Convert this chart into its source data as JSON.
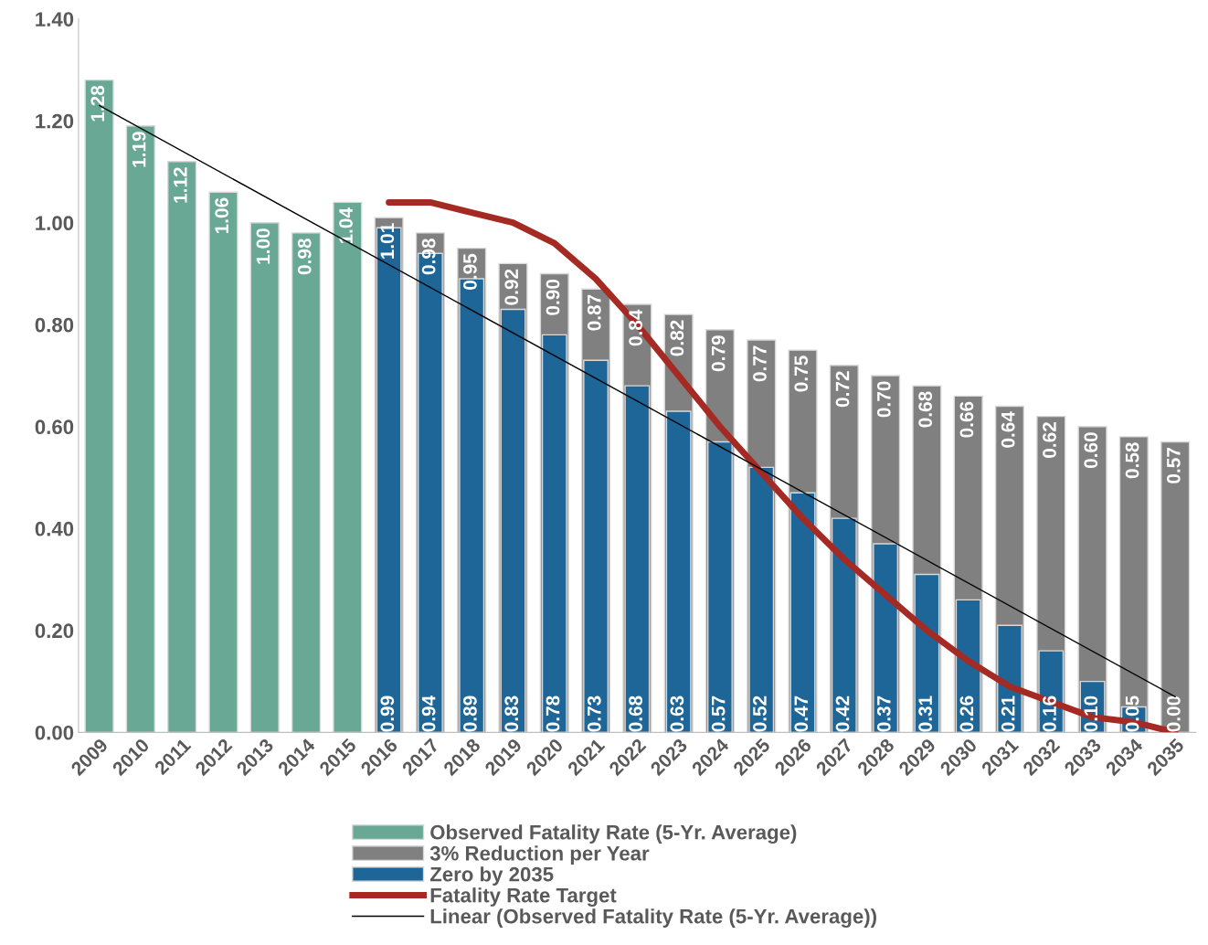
{
  "chart_data": {
    "type": "bar",
    "categories": [
      "2009",
      "2010",
      "2011",
      "2012",
      "2013",
      "2014",
      "2015",
      "2016",
      "2017",
      "2018",
      "2019",
      "2020",
      "2021",
      "2022",
      "2023",
      "2024",
      "2025",
      "2026",
      "2027",
      "2028",
      "2029",
      "2030",
      "2031",
      "2032",
      "2033",
      "2034",
      "2035"
    ],
    "series": [
      {
        "name": "Observed Fatality Rate (5-Yr. Average)",
        "color": "#68a894",
        "values": [
          1.28,
          1.19,
          1.12,
          1.06,
          1.0,
          0.98,
          1.04,
          null,
          null,
          null,
          null,
          null,
          null,
          null,
          null,
          null,
          null,
          null,
          null,
          null,
          null,
          null,
          null,
          null,
          null,
          null,
          null
        ],
        "value_labels": [
          "1.28",
          "1.19",
          "1.12",
          "1.06",
          "1.00",
          "0.98",
          "1.04",
          null,
          null,
          null,
          null,
          null,
          null,
          null,
          null,
          null,
          null,
          null,
          null,
          null,
          null,
          null,
          null,
          null,
          null,
          null,
          null
        ]
      },
      {
        "name": "3% Reduction per Year",
        "color": "#808080",
        "values": [
          null,
          null,
          null,
          null,
          null,
          null,
          null,
          1.01,
          0.98,
          0.95,
          0.92,
          0.9,
          0.87,
          0.84,
          0.82,
          0.79,
          0.77,
          0.75,
          0.72,
          0.7,
          0.68,
          0.66,
          0.64,
          0.62,
          0.6,
          0.58,
          0.57
        ],
        "value_labels": [
          null,
          null,
          null,
          null,
          null,
          null,
          null,
          "1.01",
          "0.98",
          "0.95",
          "0.92",
          "0.90",
          "0.87",
          "0.84",
          "0.82",
          "0.79",
          "0.77",
          "0.75",
          "0.72",
          "0.70",
          "0.68",
          "0.66",
          "0.64",
          "0.62",
          "0.60",
          "0.58",
          "0.57"
        ]
      },
      {
        "name": "Zero by 2035",
        "color": "#1f6698",
        "values": [
          null,
          null,
          null,
          null,
          null,
          null,
          null,
          0.99,
          0.94,
          0.89,
          0.83,
          0.78,
          0.73,
          0.68,
          0.63,
          0.57,
          0.52,
          0.47,
          0.42,
          0.37,
          0.31,
          0.26,
          0.21,
          0.16,
          0.1,
          0.05,
          0.0
        ],
        "value_labels": [
          null,
          null,
          null,
          null,
          null,
          null,
          null,
          "0.99",
          "0.94",
          "0.89",
          "0.83",
          "0.78",
          "0.73",
          "0.68",
          "0.63",
          "0.57",
          "0.52",
          "0.47",
          "0.42",
          "0.37",
          "0.31",
          "0.26",
          "0.21",
          "0.16",
          "0.10",
          "0.05",
          "0.00"
        ]
      },
      {
        "name": "Fatality Rate Target",
        "type": "line",
        "color": "#a52a24",
        "values": [
          null,
          null,
          null,
          null,
          null,
          null,
          null,
          1.04,
          1.04,
          1.02,
          1.0,
          0.96,
          0.89,
          0.8,
          0.7,
          0.6,
          0.51,
          0.42,
          0.34,
          0.27,
          0.2,
          0.14,
          0.09,
          0.06,
          0.03,
          0.02,
          0.0
        ]
      },
      {
        "name": "Linear (Observed Fatality Rate (5-Yr. Average))",
        "type": "line",
        "color": "#000000",
        "values": [
          1.23,
          null,
          null,
          null,
          null,
          null,
          null,
          null,
          null,
          null,
          null,
          null,
          null,
          null,
          null,
          null,
          null,
          null,
          null,
          null,
          null,
          null,
          null,
          null,
          null,
          null,
          0.07
        ]
      }
    ],
    "ylim": [
      0,
      1.4
    ],
    "yticks": [
      {
        "value": 0,
        "label": "0.00"
      },
      {
        "value": 0.2,
        "label": "0.20"
      },
      {
        "value": 0.4,
        "label": "0.40"
      },
      {
        "value": 0.6,
        "label": "0.60"
      },
      {
        "value": 0.8,
        "label": "0.80"
      },
      {
        "value": 1.0,
        "label": "1.00"
      },
      {
        "value": 1.2,
        "label": "1.20"
      },
      {
        "value": 1.4,
        "label": "1.40"
      }
    ],
    "grid": false,
    "legend": "bottom"
  }
}
